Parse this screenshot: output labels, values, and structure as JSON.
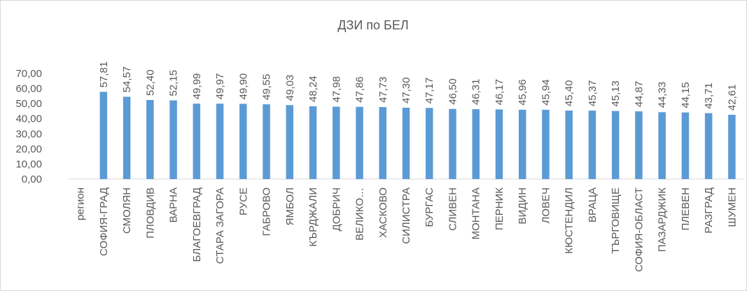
{
  "chart_data": {
    "type": "bar",
    "title": "ДЗИ по БЕЛ",
    "xlabel": "",
    "ylabel": "",
    "ylim": [
      0,
      70
    ],
    "ytick_step": 10,
    "ytick_labels": [
      "0,00",
      "10,00",
      "20,00",
      "30,00",
      "40,00",
      "50,00",
      "60,00",
      "70,00"
    ],
    "grid": false,
    "legend": "none",
    "bar_color": "#5b9bd5",
    "categories": [
      "регион",
      "СОФИЯ-ГРАД",
      "СМОЛЯН",
      "ПЛОВДИВ",
      "ВАРНА",
      "БЛАГОЕВГРАД",
      "СТАРА ЗАГОРА",
      "РУСЕ",
      "ГАБРОВО",
      "ЯМБОЛ",
      "КЪРДЖАЛИ",
      "ДОБРИЧ",
      "ВЕЛИКО…",
      "ХАСКОВО",
      "СИЛИСТРА",
      "БУРГАС",
      "СЛИВЕН",
      "МОНТАНА",
      "ПЕРНИК",
      "ВИДИН",
      "ЛОВЕЧ",
      "КЮСТЕНДИЛ",
      "ВРАЦА",
      "ТЪРГОВИЩЕ",
      "СОФИЯ-ОБЛАСТ",
      "ПАЗАРДЖИК",
      "ПЛЕВЕН",
      "РАЗГРАД",
      "ШУМЕН"
    ],
    "values": [
      null,
      57.81,
      54.57,
      52.4,
      52.15,
      49.99,
      49.97,
      49.9,
      49.55,
      49.03,
      48.24,
      47.98,
      47.86,
      47.73,
      47.3,
      47.17,
      46.5,
      46.31,
      46.17,
      45.96,
      45.94,
      45.4,
      45.37,
      45.13,
      44.87,
      44.33,
      44.15,
      43.71,
      42.61
    ],
    "value_labels": [
      "",
      "57,81",
      "54,57",
      "52,40",
      "52,15",
      "49,99",
      "49,97",
      "49,90",
      "49,55",
      "49,03",
      "48,24",
      "47,98",
      "47,86",
      "47,73",
      "47,30",
      "47,17",
      "46,50",
      "46,31",
      "46,17",
      "45,96",
      "45,94",
      "45,40",
      "45,37",
      "45,13",
      "44,87",
      "44,33",
      "44,15",
      "43,71",
      "42,61"
    ]
  }
}
